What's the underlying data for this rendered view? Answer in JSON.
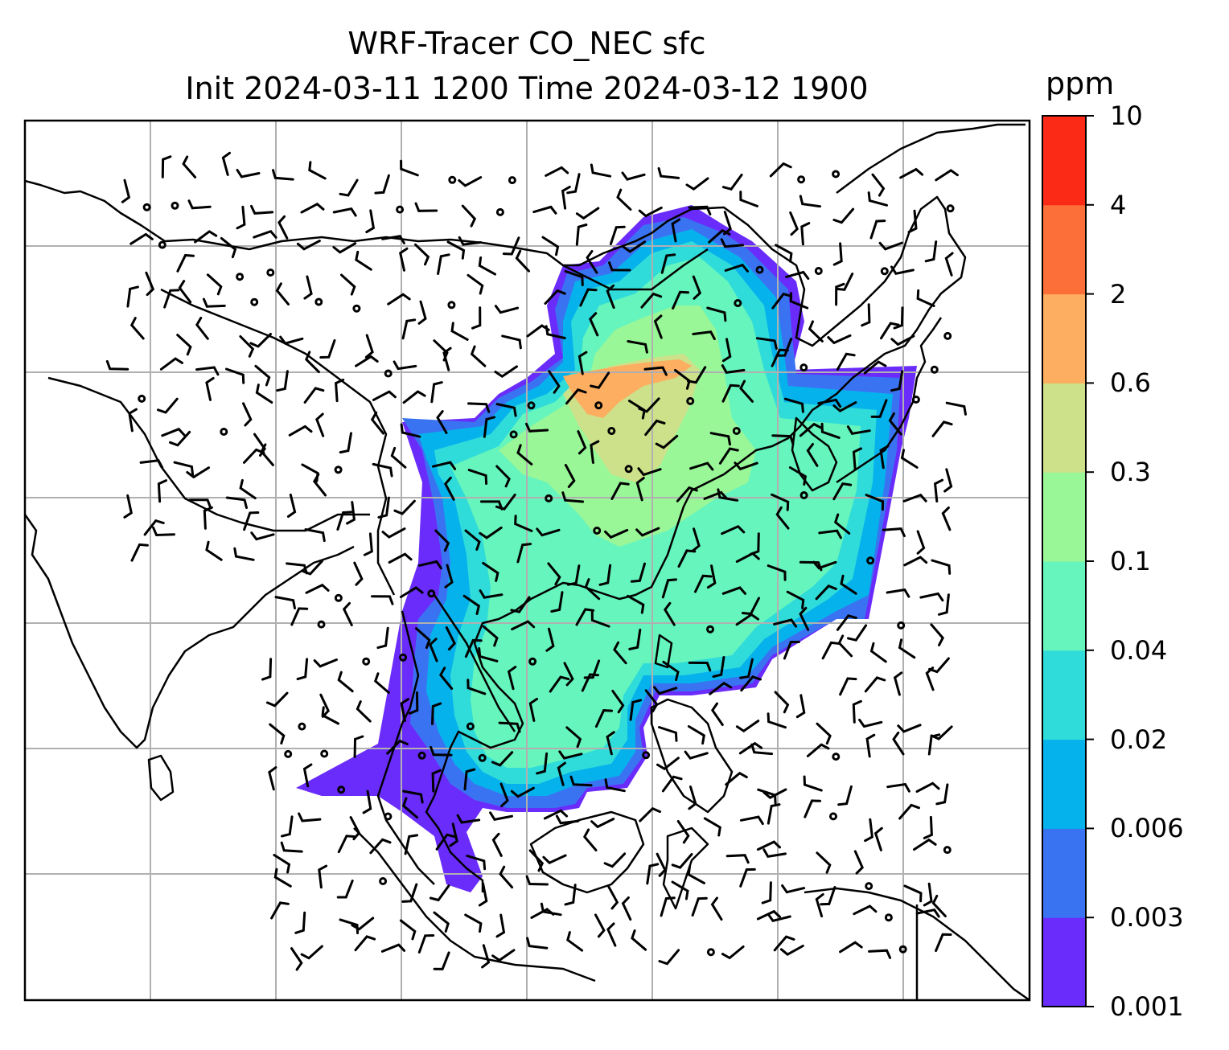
{
  "title": {
    "line1": "WRF-Tracer CO_NEC sfc",
    "line2": "Init 2024-03-11 1200 Time 2024-03-12 1900"
  },
  "colorbar": {
    "unit": "ppm",
    "levels": [
      "0.001",
      "0.003",
      "0.006",
      "0.02",
      "0.04",
      "0.1",
      "0.3",
      "0.6",
      "2",
      "4",
      "10"
    ],
    "colors": [
      "#6a2cfb",
      "#3a73f2",
      "#06b2ec",
      "#2fdcd9",
      "#66f5bd",
      "#99f797",
      "#cde08a",
      "#fdae60",
      "#fd6f38",
      "#fa2a16"
    ]
  },
  "map": {
    "gridlines": true,
    "coastline_color": "#000000",
    "gridline_color": "#b0b0b0",
    "wind_barbs": true
  }
}
